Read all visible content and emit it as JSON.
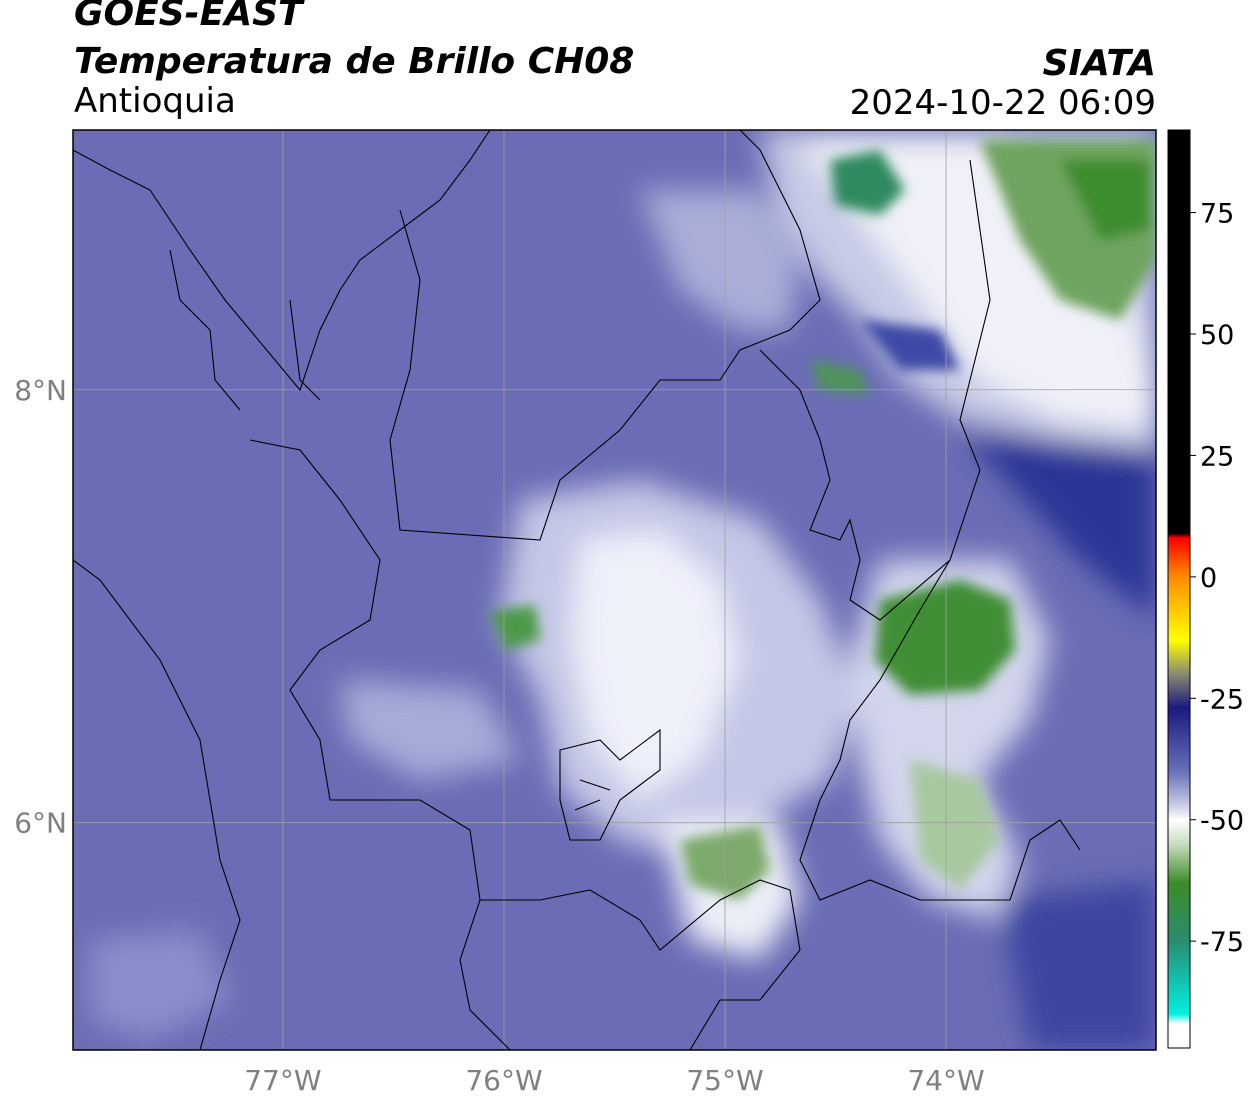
{
  "header": {
    "satellite": "GOES-EAST",
    "product": "Temperatura de Brillo CH08",
    "region": "Antioquia",
    "institution": "SIATA",
    "timestamp": "2024-10-22 06:09"
  },
  "axes": {
    "lat_labels": [
      "8°N",
      "6°N"
    ],
    "lon_labels": [
      "77°W",
      "76°W",
      "75°W",
      "74°W"
    ],
    "lat_values": [
      8,
      6
    ],
    "lon_values": [
      -77,
      -76,
      -75,
      -74
    ],
    "lon_range": [
      -77.95,
      -73.05
    ],
    "lat_range": [
      4.95,
      9.2
    ]
  },
  "colorbar": {
    "ticks": [
      75,
      50,
      25,
      0,
      -25,
      -50,
      -75
    ],
    "tick_labels": [
      "75",
      "50",
      "25",
      "0",
      "-25",
      "-50",
      "-75"
    ],
    "range": [
      -97,
      92
    ],
    "stops": [
      {
        "v": 92,
        "c": "#000000"
      },
      {
        "v": 9,
        "c": "#000000"
      },
      {
        "v": 8,
        "c": "#ff0000"
      },
      {
        "v": 0,
        "c": "#ff8c00"
      },
      {
        "v": -13,
        "c": "#ffff00"
      },
      {
        "v": -20,
        "c": "#8a8a70"
      },
      {
        "v": -27,
        "c": "#1a1a80"
      },
      {
        "v": -40,
        "c": "#6870b8"
      },
      {
        "v": -47,
        "c": "#c8cce4"
      },
      {
        "v": -50,
        "c": "#ffffff"
      },
      {
        "v": -55,
        "c": "#c8dcc0"
      },
      {
        "v": -63,
        "c": "#3c8c28"
      },
      {
        "v": -75,
        "c": "#2a8c70"
      },
      {
        "v": -90,
        "c": "#00f0e0"
      },
      {
        "v": -92,
        "c": "#ffffff"
      },
      {
        "v": -97,
        "c": "#ffffff"
      }
    ]
  },
  "colors": {
    "base_blue": "#6c6fb6",
    "deep_blue": "#202a8c",
    "white": "#ffffff",
    "green": "#4c9a3c",
    "grid": "#a0a0a0",
    "tick_text": "#808080"
  }
}
